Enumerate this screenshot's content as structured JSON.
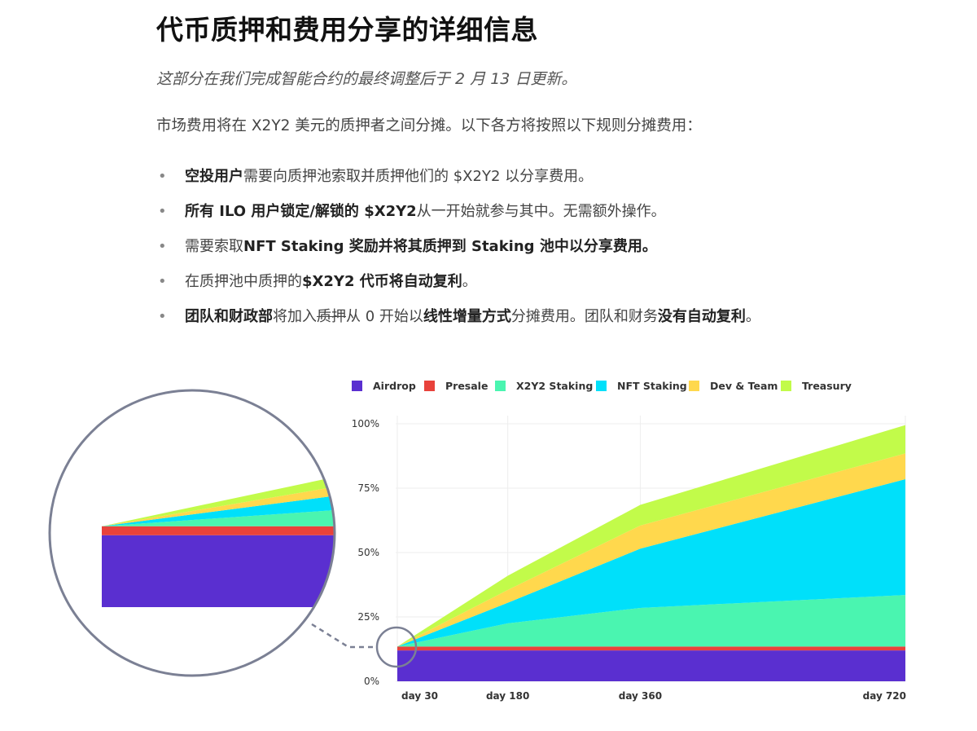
{
  "heading": "代币质押和费用分享的详细信息",
  "update_note": "这部分在我们完成智能合约的最终调整后于 2 月 13 日更新。",
  "intro": "市场费用将在 X2Y2 美元的质押者之间分摊。以下各方将按照以下规则分摊费用：",
  "bullets": [
    {
      "bold": "空投用户",
      "text": "需要向质押池索取并质押他们的 $X2Y2 以分享费用。"
    },
    {
      "bold": "所有 ILO 用户锁定/解锁的 $X2Y2",
      "text": "从一开始就参与其中。无需额外操作。"
    },
    {
      "pre": "需要索取",
      "bold": "NFT Staking 奖励并将其质押到 Staking 池中以分享费用。"
    },
    {
      "pre": "在质押池中质押的",
      "bold": "$X2Y2 代币将自动复利",
      "text": "。"
    },
    {
      "bold": "团队和财政部",
      "text1": "将加入",
      "strike": "质押",
      "text2": "从 0 开始以",
      "bold2": "线性增量方式",
      "text3": "分摊费用。团队和财务",
      "bold3": "没有自动复利",
      "text4": "。"
    }
  ],
  "chart_data": {
    "type": "area",
    "stacked": true,
    "x": [
      "day 30",
      "day 180",
      "day 360",
      "day 720"
    ],
    "x_values": [
      30,
      180,
      360,
      720
    ],
    "ylim": [
      0,
      100
    ],
    "yticks": [
      "0%",
      "25%",
      "50%",
      "75%",
      "100%"
    ],
    "ytick_values": [
      0,
      25,
      50,
      75,
      100
    ],
    "grid": true,
    "legend_position": "top",
    "series": [
      {
        "name": "Airdrop",
        "color": "#5a2fd0",
        "values": [
          12,
          12,
          12,
          12
        ]
      },
      {
        "name": "Presale",
        "color": "#e8423b",
        "values": [
          1.5,
          1.5,
          1.5,
          1.5
        ]
      },
      {
        "name": "X2Y2 Staking",
        "color": "#4af5b0",
        "values": [
          0,
          9,
          15,
          20
        ]
      },
      {
        "name": "NFT Staking",
        "color": "#00e0fa",
        "values": [
          0,
          8,
          23,
          45
        ]
      },
      {
        "name": "Dev & Team",
        "color": "#ffd84d",
        "values": [
          0,
          5,
          9,
          10
        ]
      },
      {
        "name": "Treasury",
        "color": "#c2fb4a",
        "values": [
          0,
          5.5,
          8,
          11
        ]
      }
    ],
    "zoom_inset": true
  }
}
